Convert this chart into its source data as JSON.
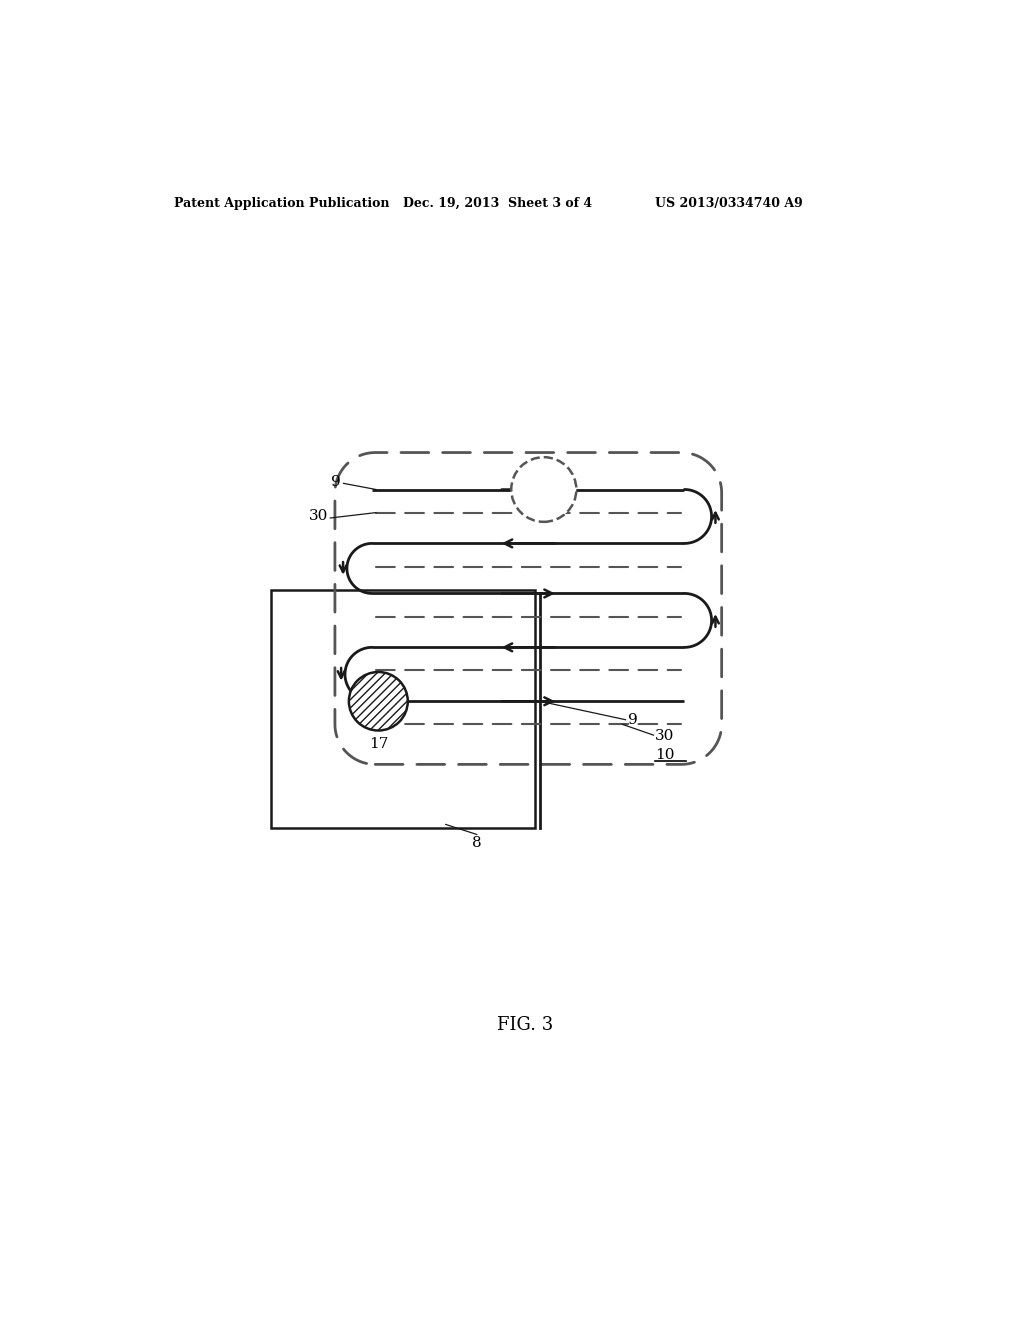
{
  "header_left": "Patent Application Publication",
  "header_mid": "Dec. 19, 2013  Sheet 3 of 4",
  "header_right": "US 2013/0334740 A9",
  "fig_label": "FIG. 3",
  "bg_color": "#ffffff",
  "solid_color": "#1a1a1a",
  "dash_color": "#555555",
  "env_color": "#555555",
  "label_9_top": "9",
  "label_30_top": "30",
  "label_9_bot": "9",
  "label_30_bot": "30",
  "label_8": "8",
  "label_10": "10",
  "label_17": "17"
}
